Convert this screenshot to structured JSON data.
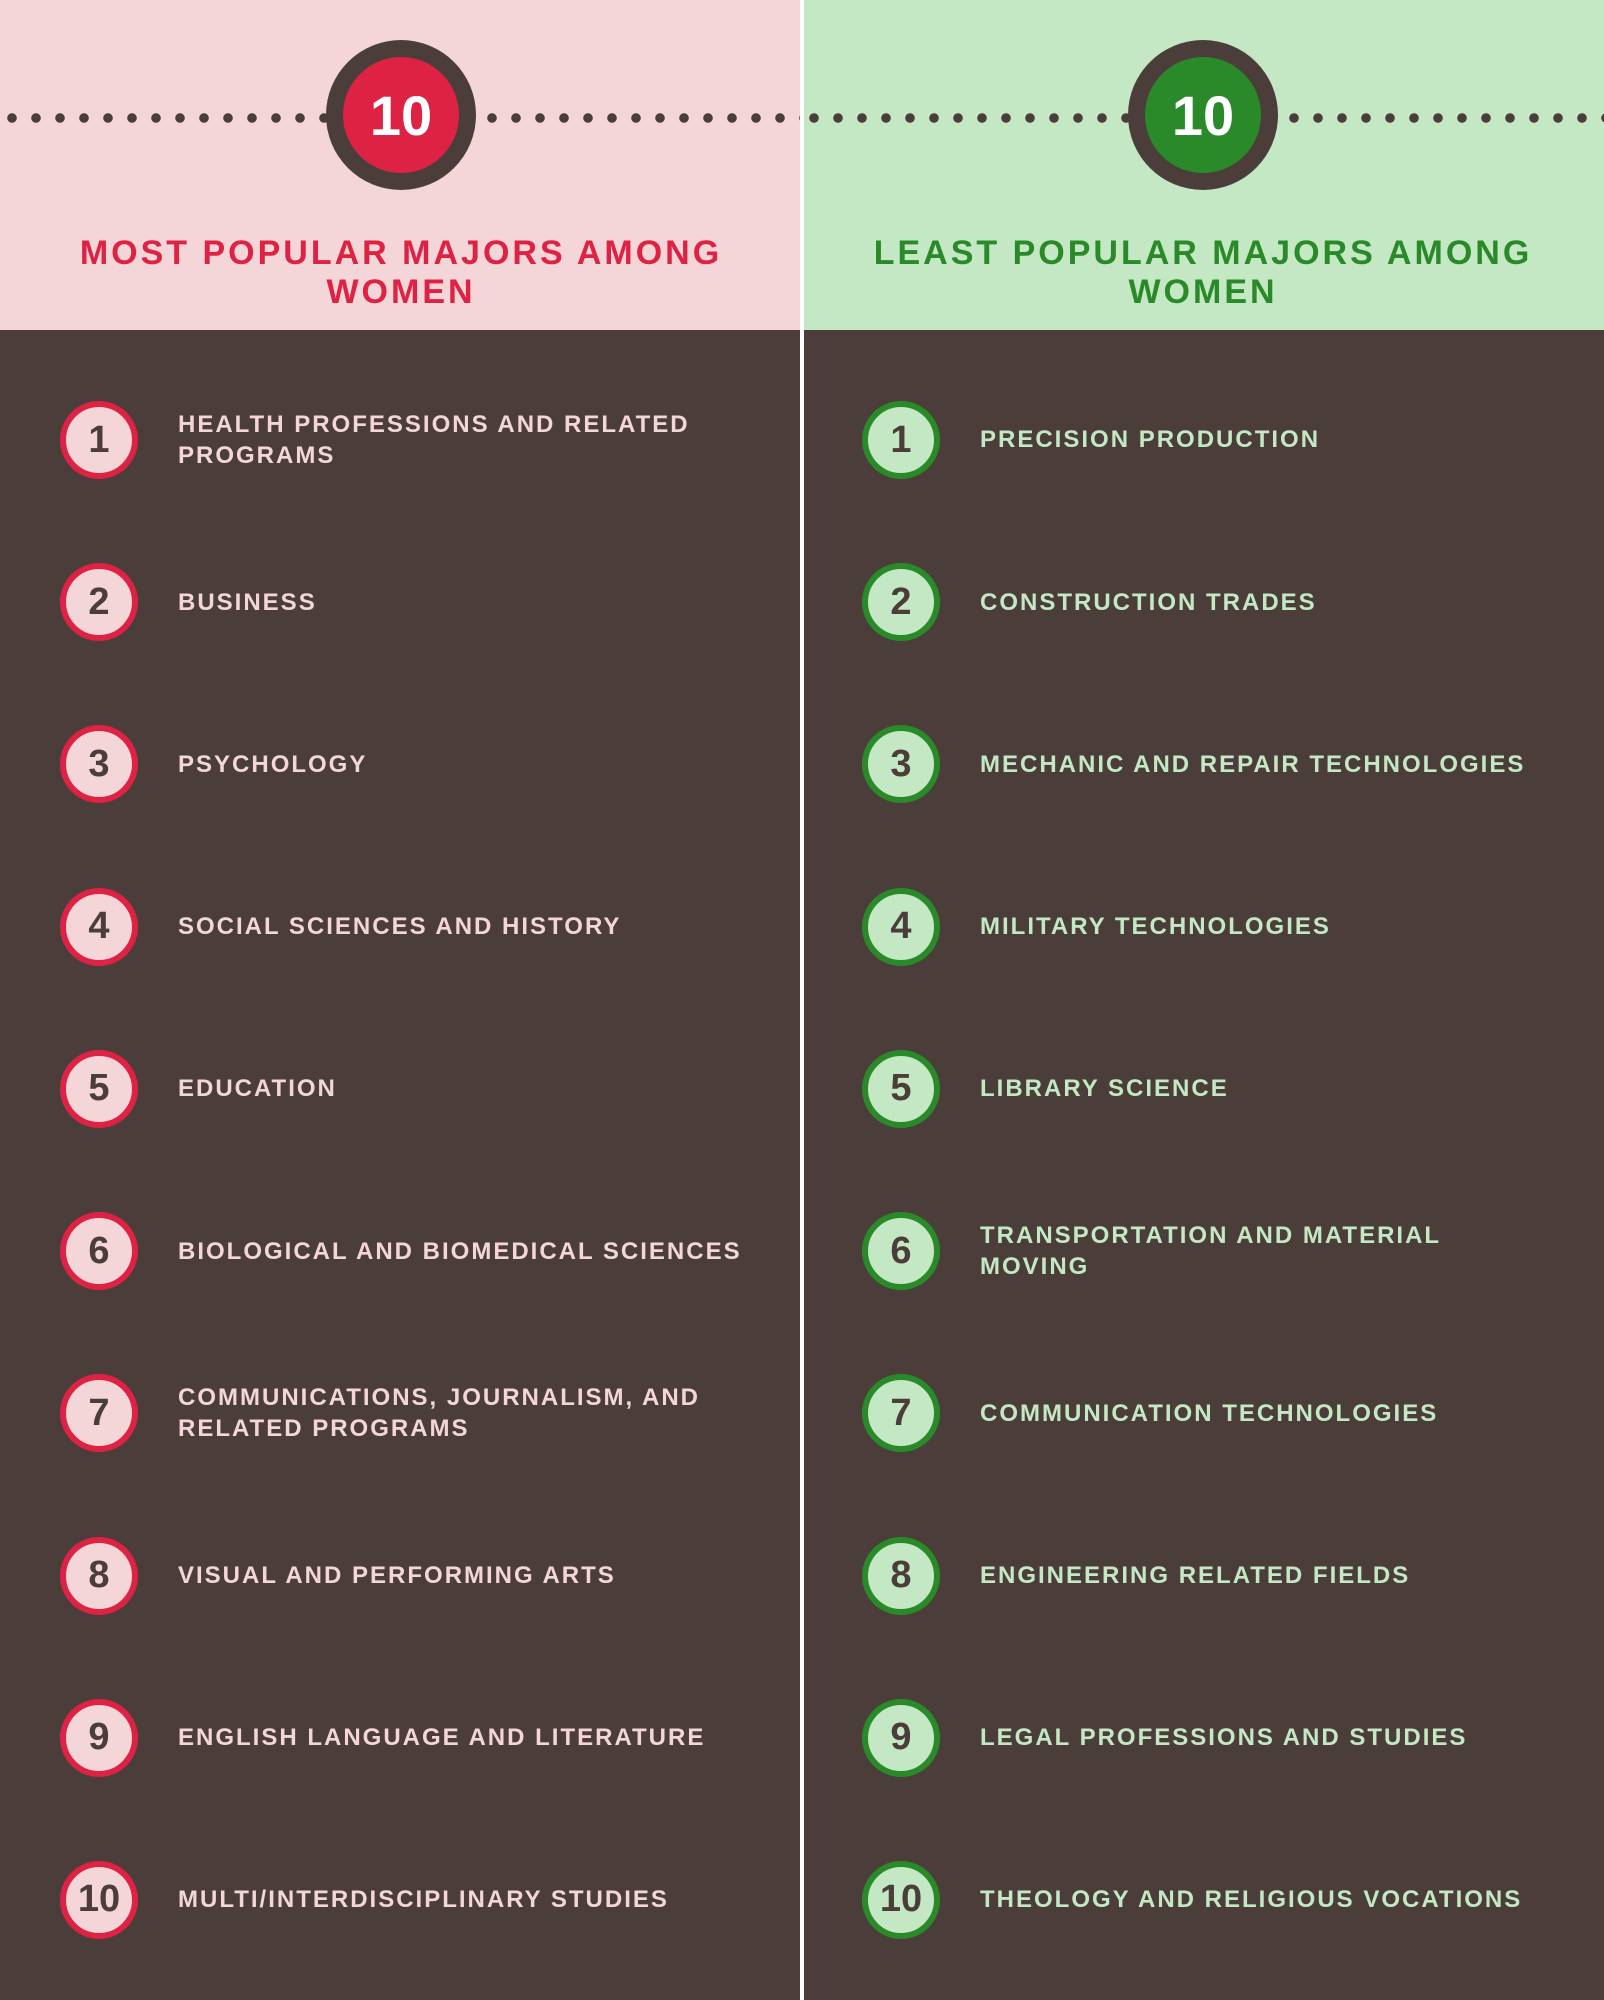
{
  "colors": {
    "left_header_bg": "#f4d5d8",
    "right_header_bg": "#c4e8c4",
    "left_accent": "#dd2244",
    "right_accent": "#2a8a2a",
    "dark_bg": "#4b3e3a",
    "badge_ring": "#4b3d3a",
    "left_text": "#f4d5d8",
    "right_text": "#c4e8c4"
  },
  "left": {
    "badge_number": "10",
    "title": "MOST POPULAR MAJORS AMONG WOMEN",
    "items": [
      {
        "n": "1",
        "label": "HEALTH PROFESSIONS AND RELATED PROGRAMS"
      },
      {
        "n": "2",
        "label": "BUSINESS"
      },
      {
        "n": "3",
        "label": "PSYCHOLOGY"
      },
      {
        "n": "4",
        "label": "SOCIAL SCIENCES AND HISTORY"
      },
      {
        "n": "5",
        "label": "EDUCATION"
      },
      {
        "n": "6",
        "label": "BIOLOGICAL AND BIOMEDICAL SCIENCES"
      },
      {
        "n": "7",
        "label": "COMMUNICATIONS, JOURNALISM, AND RELATED PROGRAMS"
      },
      {
        "n": "8",
        "label": "VISUAL AND PERFORMING ARTS"
      },
      {
        "n": "9",
        "label": "ENGLISH LANGUAGE AND LITERATURE"
      },
      {
        "n": "10",
        "label": "MULTI/INTERDISCIPLINARY STUDIES"
      }
    ]
  },
  "right": {
    "badge_number": "10",
    "title": "LEAST POPULAR MAJORS AMONG WOMEN",
    "items": [
      {
        "n": "1",
        "label": "PRECISION PRODUCTION"
      },
      {
        "n": "2",
        "label": "CONSTRUCTION TRADES"
      },
      {
        "n": "3",
        "label": "MECHANIC AND REPAIR TECHNOLOGIES"
      },
      {
        "n": "4",
        "label": "MILITARY TECHNOLOGIES"
      },
      {
        "n": "5",
        "label": "LIBRARY SCIENCE"
      },
      {
        "n": "6",
        "label": "TRANSPORTATION AND MATERIAL MOVING"
      },
      {
        "n": "7",
        "label": "COMMUNICATION TECHNOLOGIES"
      },
      {
        "n": "8",
        "label": "ENGINEERING RELATED FIELDS"
      },
      {
        "n": "9",
        "label": "LEGAL PROFESSIONS AND STUDIES"
      },
      {
        "n": "10",
        "label": "THEOLOGY AND RELIGIOUS VOCATIONS"
      }
    ]
  }
}
